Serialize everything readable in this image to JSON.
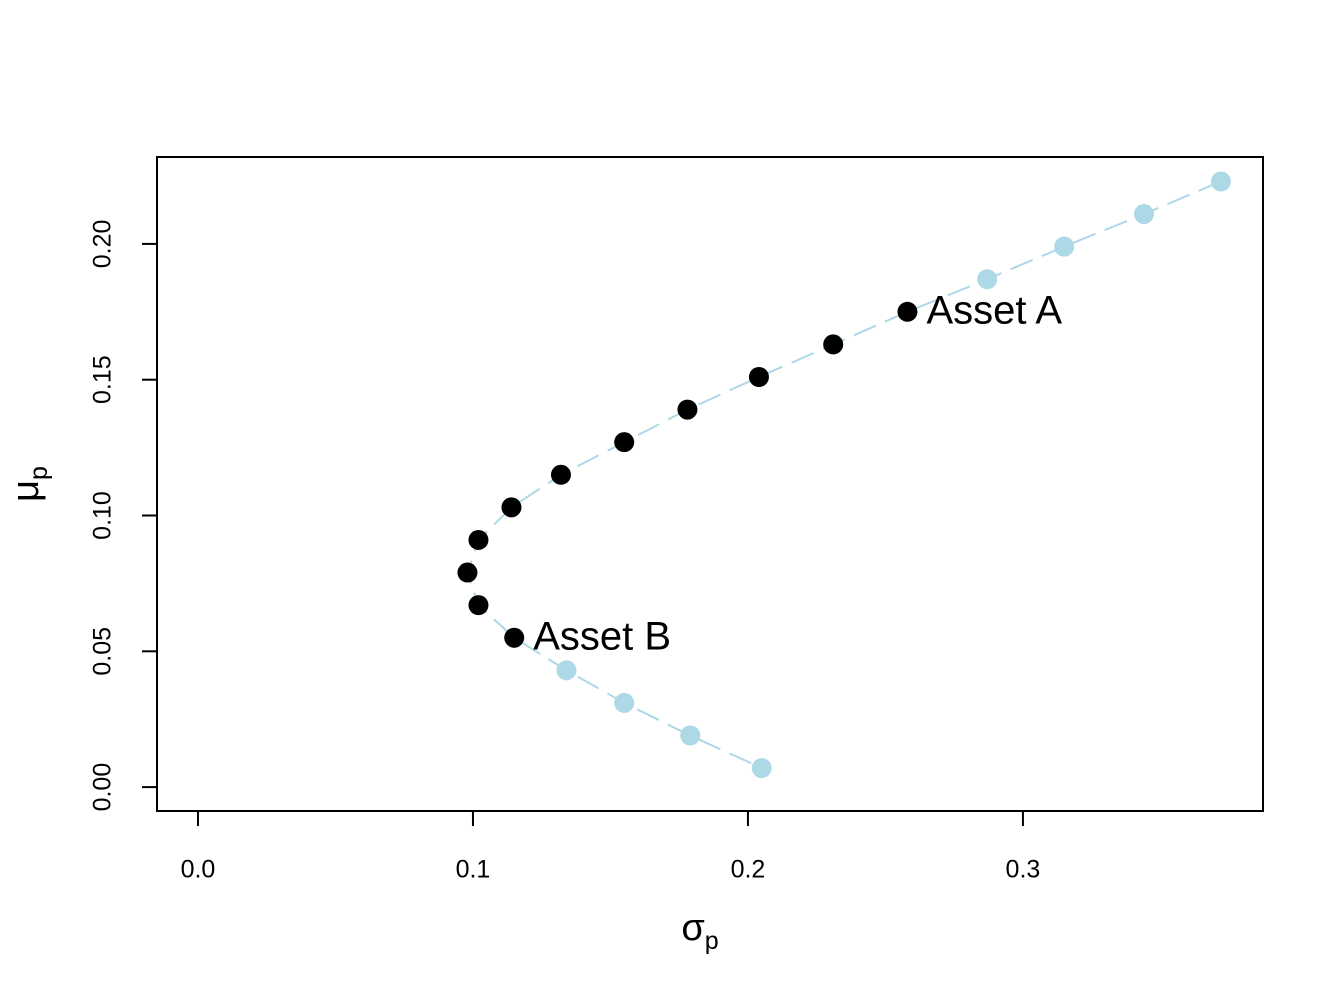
{
  "chart_data": {
    "type": "scatter",
    "xlabel": {
      "symbol": "σ",
      "subscript": "p"
    },
    "ylabel": {
      "symbol": "μ",
      "subscript": "p"
    },
    "x": [
      0.372,
      0.344,
      0.315,
      0.287,
      0.258,
      0.231,
      0.204,
      0.178,
      0.155,
      0.132,
      0.114,
      0.102,
      0.098,
      0.102,
      0.115,
      0.134,
      0.155,
      0.179,
      0.205
    ],
    "values": [
      0.223,
      0.211,
      0.199,
      0.187,
      0.175,
      0.163,
      0.151,
      0.139,
      0.127,
      0.115,
      0.103,
      0.091,
      0.079,
      0.067,
      0.055,
      0.043,
      0.031,
      0.019,
      0.007
    ],
    "line_color": "#add8e6",
    "point_colors": [
      "#add8e6",
      "#add8e6",
      "#add8e6",
      "#add8e6",
      "#000000",
      "#000000",
      "#000000",
      "#000000",
      "#000000",
      "#000000",
      "#000000",
      "#000000",
      "#000000",
      "#000000",
      "#000000",
      "#add8e6",
      "#add8e6",
      "#add8e6",
      "#add8e6"
    ],
    "annotations": [
      {
        "text": "Asset A",
        "point": 4
      },
      {
        "text": "Asset B",
        "point": 14
      }
    ],
    "xlim": [
      -0.0149,
      0.3873
    ],
    "ylim": [
      -0.0088,
      0.232
    ],
    "xticks": [
      {
        "value": 0,
        "label": "0.0"
      },
      0.1,
      0.2,
      0.3
    ],
    "yticks": [
      {
        "value": 0,
        "label": "0.00"
      },
      0.05,
      {
        "value": 0.1,
        "label": "0.10"
      },
      0.15,
      {
        "value": 0.2,
        "label": "0.20"
      }
    ],
    "grid": false
  }
}
